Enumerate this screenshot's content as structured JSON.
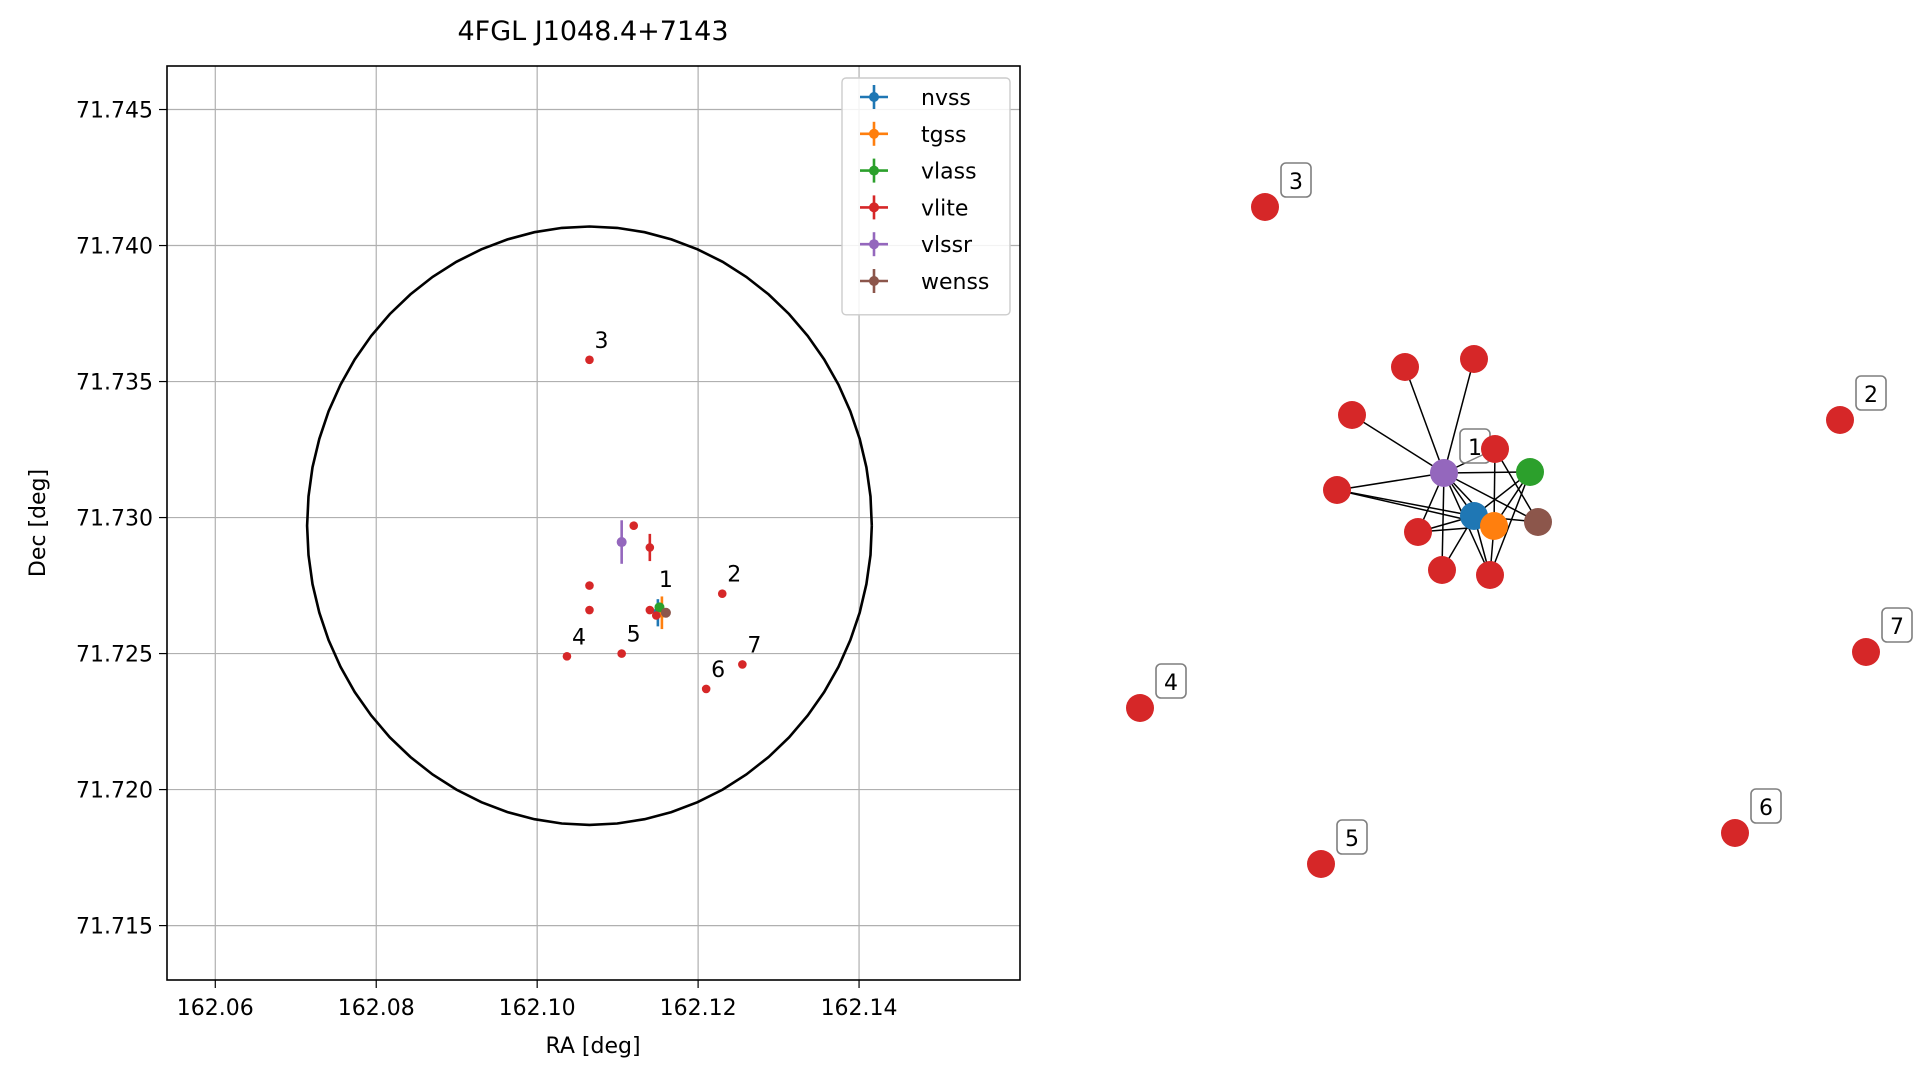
{
  "chart_data": [
    {
      "type": "scatter",
      "title": "4FGL J1048.4+7143",
      "xlabel": "RA [deg]",
      "ylabel": "Dec [deg]",
      "xlim": [
        162.054,
        162.16
      ],
      "ylim": [
        71.713,
        71.7466
      ],
      "xticks": [
        162.06,
        162.08,
        162.1,
        162.12,
        162.14
      ],
      "xtick_labels": [
        "162.06",
        "162.08",
        "162.10",
        "162.12",
        "162.14"
      ],
      "yticks": [
        71.715,
        71.72,
        71.725,
        71.73,
        71.735,
        71.74,
        71.745
      ],
      "ytick_labels": [
        "71.715",
        "71.720",
        "71.725",
        "71.730",
        "71.735",
        "71.740",
        "71.745"
      ],
      "grid": true,
      "legend_position": "top-right",
      "circle": {
        "center": [
          162.1065,
          71.7297
        ],
        "radius_dec": 0.011,
        "color": "#000000"
      },
      "series": [
        {
          "name": "nvss",
          "color": "#1f77b4",
          "points": [
            {
              "x": 162.115,
              "y": 71.7265,
              "yerr": 0.0005,
              "xerr": 0.0
            }
          ]
        },
        {
          "name": "tgss",
          "color": "#ff7f0e",
          "points": [
            {
              "x": 162.1155,
              "y": 71.7265,
              "yerr": 0.0006,
              "xerr": 0.0
            }
          ]
        },
        {
          "name": "vlass",
          "color": "#2ca02c",
          "points": [
            {
              "x": 162.1152,
              "y": 71.7267,
              "yerr": 0.0,
              "xerr": 0.0
            }
          ]
        },
        {
          "name": "vlite",
          "color": "#d62728",
          "points": [
            {
              "x": 162.114,
              "y": 71.7266,
              "yerr": 0.0,
              "xerr": 0.0
            },
            {
              "x": 162.1148,
              "y": 71.7264,
              "yerr": 0.0,
              "xerr": 0.0
            },
            {
              "x": 162.114,
              "y": 71.7289,
              "yerr": 0.0005,
              "xerr": 0.0
            },
            {
              "x": 162.112,
              "y": 71.7297,
              "yerr": 0.0,
              "xerr": 0.0
            },
            {
              "x": 162.1065,
              "y": 71.7275,
              "yerr": 0.0,
              "xerr": 0.0
            },
            {
              "x": 162.1065,
              "y": 71.7266,
              "yerr": 0.0,
              "xerr": 0.0
            },
            {
              "x": 162.1065,
              "y": 71.7358,
              "yerr": 0.0,
              "xerr": 0.0
            },
            {
              "x": 162.123,
              "y": 71.7272,
              "yerr": 0.0,
              "xerr": 0.0
            },
            {
              "x": 162.1037,
              "y": 71.7249,
              "yerr": 0.0,
              "xerr": 0.0
            },
            {
              "x": 162.1105,
              "y": 71.725,
              "yerr": 0.0,
              "xerr": 0.0
            },
            {
              "x": 162.121,
              "y": 71.7237,
              "yerr": 0.0,
              "xerr": 0.0
            },
            {
              "x": 162.1255,
              "y": 71.7246,
              "yerr": 0.0,
              "xerr": 0.0
            }
          ]
        },
        {
          "name": "vlssr",
          "color": "#9467bd",
          "points": [
            {
              "x": 162.1105,
              "y": 71.7291,
              "yerr": 0.0008,
              "xerr": 0.0004
            }
          ]
        },
        {
          "name": "wenss",
          "color": "#8c564b",
          "points": [
            {
              "x": 162.116,
              "y": 71.7265,
              "yerr": 0.0,
              "xerr": 0.0
            }
          ]
        }
      ],
      "annotations": [
        {
          "text": "1",
          "x": 162.1145,
          "y": 71.727
        },
        {
          "text": "2",
          "x": 162.123,
          "y": 71.7272
        },
        {
          "text": "3",
          "x": 162.1065,
          "y": 71.7358
        },
        {
          "text": "4",
          "x": 162.1037,
          "y": 71.7249
        },
        {
          "text": "5",
          "x": 162.1105,
          "y": 71.725
        },
        {
          "text": "6",
          "x": 162.121,
          "y": 71.7237
        },
        {
          "text": "7",
          "x": 162.1255,
          "y": 71.7246
        }
      ]
    },
    {
      "type": "network",
      "node_colors": {
        "nvss": "#1f77b4",
        "tgss": "#ff7f0e",
        "vlass": "#2ca02c",
        "vlite": "#d62728",
        "vlssr": "#9467bd",
        "wenss": "#8c564b"
      },
      "nodes": [
        {
          "id": "n_vlssr",
          "series": "vlssr",
          "label": "1"
        },
        {
          "id": "n_nvss",
          "series": "nvss",
          "label": ""
        },
        {
          "id": "n_tgss",
          "series": "tgss",
          "label": ""
        },
        {
          "id": "n_vlass",
          "series": "vlass",
          "label": ""
        },
        {
          "id": "n_wenss",
          "series": "wenss",
          "label": ""
        },
        {
          "id": "r1",
          "series": "vlite",
          "label": ""
        },
        {
          "id": "r2",
          "series": "vlite",
          "label": ""
        },
        {
          "id": "r3",
          "series": "vlite",
          "label": ""
        },
        {
          "id": "r4",
          "series": "vlite",
          "label": ""
        },
        {
          "id": "r5",
          "series": "vlite",
          "label": ""
        },
        {
          "id": "r6",
          "series": "vlite",
          "label": ""
        },
        {
          "id": "r7",
          "series": "vlite",
          "label": ""
        },
        {
          "id": "r8",
          "series": "vlite",
          "label": ""
        },
        {
          "id": "i2",
          "series": "vlite",
          "label": "2"
        },
        {
          "id": "i3",
          "series": "vlite",
          "label": "3"
        },
        {
          "id": "i4",
          "series": "vlite",
          "label": "4"
        },
        {
          "id": "i5",
          "series": "vlite",
          "label": "5"
        },
        {
          "id": "i6",
          "series": "vlite",
          "label": "6"
        },
        {
          "id": "i7",
          "series": "vlite",
          "label": "7"
        }
      ],
      "edges": [
        [
          "n_vlssr",
          "r1"
        ],
        [
          "n_vlssr",
          "r2"
        ],
        [
          "n_vlssr",
          "r3"
        ],
        [
          "n_vlssr",
          "r4"
        ],
        [
          "n_vlssr",
          "r5"
        ],
        [
          "n_vlssr",
          "r6"
        ],
        [
          "n_vlssr",
          "r7"
        ],
        [
          "n_vlssr",
          "r8"
        ],
        [
          "n_vlssr",
          "n_nvss"
        ],
        [
          "n_vlssr",
          "n_tgss"
        ],
        [
          "n_vlssr",
          "n_vlass"
        ],
        [
          "n_vlssr",
          "n_wenss"
        ],
        [
          "n_nvss",
          "r5"
        ],
        [
          "n_nvss",
          "r6"
        ],
        [
          "n_nvss",
          "r7"
        ],
        [
          "n_nvss",
          "r8"
        ],
        [
          "n_nvss",
          "n_vlass"
        ],
        [
          "n_nvss",
          "n_wenss"
        ],
        [
          "n_tgss",
          "r5"
        ],
        [
          "n_tgss",
          "r6"
        ],
        [
          "n_tgss",
          "r8"
        ],
        [
          "n_tgss",
          "n_vlass"
        ],
        [
          "n_tgss",
          "r4"
        ],
        [
          "r4",
          "n_wenss"
        ],
        [
          "r8",
          "n_vlass"
        ]
      ]
    }
  ]
}
